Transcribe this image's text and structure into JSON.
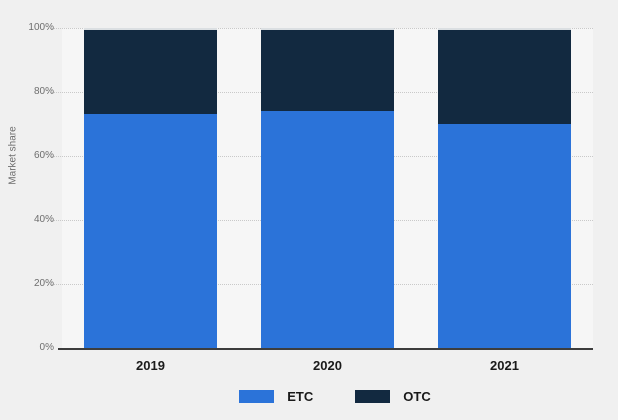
{
  "chart_data": {
    "type": "bar",
    "stacked": true,
    "categories": [
      "2019",
      "2020",
      "2021"
    ],
    "series": [
      {
        "name": "ETC",
        "color": "#2b73d9",
        "values": [
          73,
          74,
          70
        ]
      },
      {
        "name": "OTC",
        "color": "#122940",
        "values": [
          27,
          26,
          30
        ]
      }
    ],
    "title": "",
    "xlabel": "",
    "ylabel": "Market share",
    "ylim": [
      0,
      100
    ],
    "y_tick_labels": [
      "0%",
      "20%",
      "40%",
      "60%",
      "80%",
      "100%"
    ],
    "grid": "horizontal-dotted",
    "legend_position": "bottom"
  },
  "colors": {
    "page_background": "#f0f0f0",
    "column_band": "#f6f6f6",
    "gridline": "#c9c9c9",
    "axis_line": "#3d3d3d",
    "tick_text": "#6e6e6e",
    "label_text": "#1a1a1a"
  }
}
